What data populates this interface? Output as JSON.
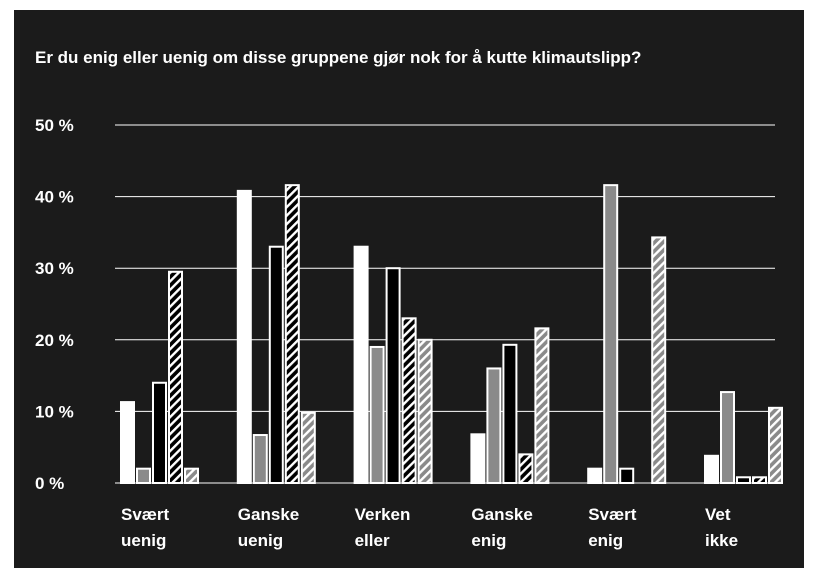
{
  "chart_data": {
    "type": "bar",
    "title": "Er du enig eller uenig om disse gruppene gjør nok for å kutte klimautslipp?",
    "categories": [
      "Svært uenig",
      "Ganske uenig",
      "Verken eller",
      "Ganske enig",
      "Svært enig",
      "Vet ikke"
    ],
    "series": [
      {
        "color": "#ffffff",
        "hatch": false,
        "values": [
          11.3,
          40.8,
          33,
          6.8,
          2,
          3.8
        ]
      },
      {
        "color": "#8a8a8a",
        "hatch": false,
        "values": [
          2,
          6.7,
          19,
          16,
          41.6,
          12.7
        ]
      },
      {
        "color": "#000000",
        "hatch": false,
        "values": [
          14,
          33,
          30,
          19.3,
          2,
          0.8
        ]
      },
      {
        "color": "#000000",
        "hatch": true,
        "values": [
          29.5,
          41.6,
          23,
          4,
          0,
          0.8
        ]
      },
      {
        "color": "#8a8a8a",
        "hatch": true,
        "values": [
          2,
          9.8,
          20,
          21.6,
          34.3,
          10.5
        ]
      }
    ],
    "ylim": [
      0,
      50
    ],
    "yticks": [
      {
        "value": 0,
        "label": "0 %"
      },
      {
        "value": 10,
        "label": "10 %"
      },
      {
        "value": 20,
        "label": "20 %"
      },
      {
        "value": 30,
        "label": "30 %"
      },
      {
        "value": 40,
        "label": "40 %"
      },
      {
        "value": 50,
        "label": "50 %"
      }
    ],
    "grid": true
  }
}
